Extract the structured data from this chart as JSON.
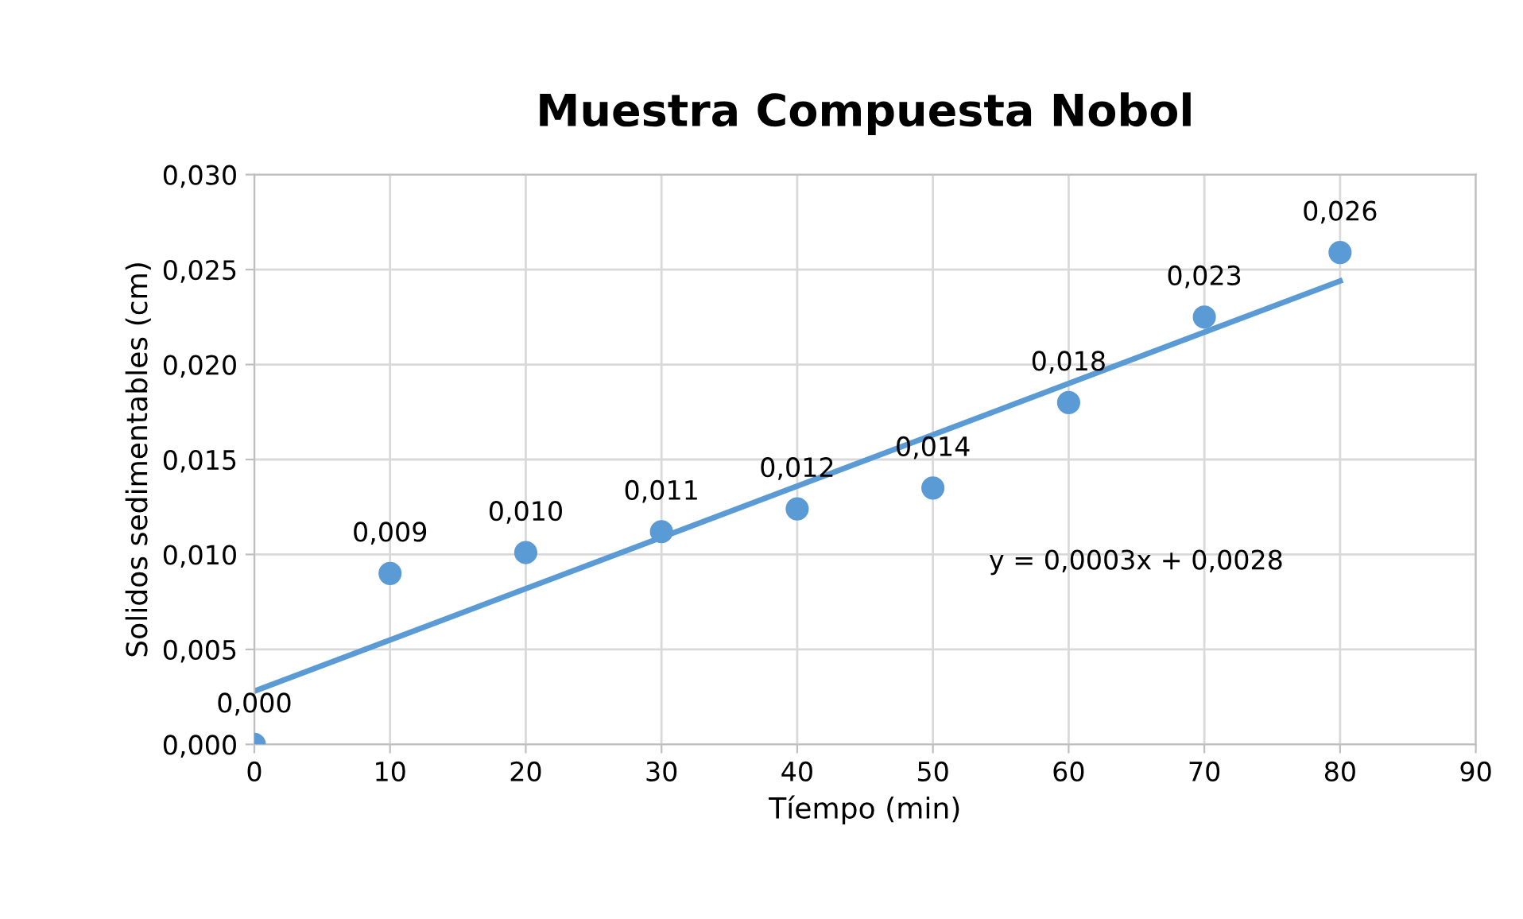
{
  "chart_data": {
    "type": "scatter",
    "title": "Muestra Compuesta Nobol",
    "xlabel": "Tíempo (min)",
    "ylabel": "Solidos sedimentables (cm)",
    "x": [
      0,
      10,
      20,
      30,
      40,
      50,
      60,
      70,
      80
    ],
    "series": [
      {
        "color": "#5b9bd5",
        "marker": "circle",
        "values": [
          0.0,
          0.009,
          0.0101,
          0.0112,
          0.0124,
          0.0135,
          0.018,
          0.0225,
          0.0259
        ],
        "value_labels": [
          "0,000",
          "0,009",
          "0,010",
          "0,011",
          "0,012",
          "0,014",
          "0,018",
          "0,023",
          "0,026"
        ]
      },
      {
        "type": "line",
        "color": "#5b9bd5",
        "x": [
          0,
          80
        ],
        "values": [
          0.0028,
          0.0244
        ]
      }
    ],
    "annotations": [
      "y = 0,0003x + 0,0028"
    ],
    "grid": true,
    "xlim": [
      0,
      90
    ],
    "xticks": [
      0,
      10,
      20,
      30,
      40,
      50,
      60,
      70,
      80,
      90
    ],
    "ylim": [
      0,
      0.03
    ],
    "yticks": [
      {
        "value": 0,
        "label": "0,000"
      },
      {
        "value": 0.005,
        "label": "0,005"
      },
      {
        "value": 0.01,
        "label": "0,010"
      },
      {
        "value": 0.015,
        "label": "0,015"
      },
      {
        "value": 0.02,
        "label": "0,020"
      },
      {
        "value": 0.025,
        "label": "0,025"
      },
      {
        "value": 0.03,
        "label": "0,030"
      }
    ]
  }
}
